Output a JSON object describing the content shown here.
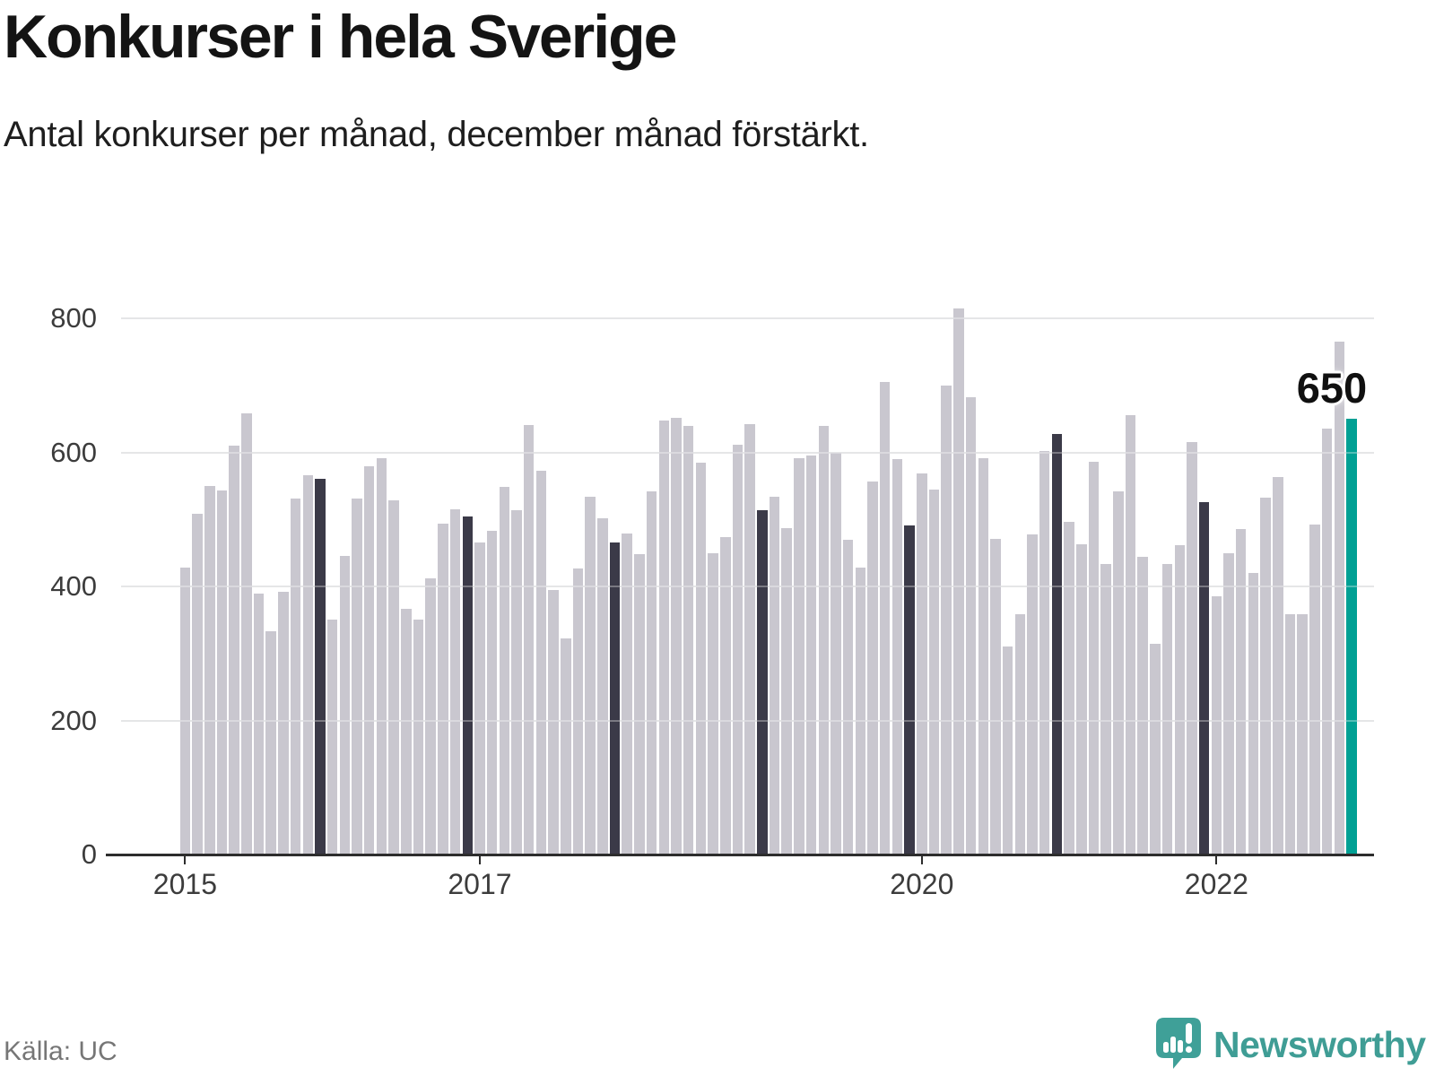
{
  "header": {
    "title": "Konkurser i hela Sverige",
    "subtitle": "Antal konkurser per månad, december månad förstärkt."
  },
  "footer": {
    "source": "Källa: UC",
    "brand": "Newsworthy"
  },
  "colors": {
    "bar_default": "#c9c7cf",
    "bar_december": "#3b3a48",
    "bar_highlight": "#00a094",
    "gridline": "#d9dadc",
    "axis": "#2d2d2d",
    "axis_text": "#3c3c3c",
    "title_text": "#141414",
    "source_text": "#767676",
    "brand_teal": "#3f9d95"
  },
  "chart_data": {
    "type": "bar",
    "title": "Konkurser i hela Sverige",
    "subtitle": "Antal konkurser per månad, december månad förstärkt.",
    "ylabel": "",
    "xlabel": "",
    "ylim": [
      0,
      850
    ],
    "yticks": [
      0,
      200,
      400,
      600,
      800
    ],
    "grid": true,
    "december_emphasized": true,
    "highlight_last_bar": true,
    "xticks": [
      {
        "label": "2015",
        "month_index": 0
      },
      {
        "label": "2017",
        "month_index": 24
      },
      {
        "label": "2020",
        "month_index": 60
      },
      {
        "label": "2022",
        "month_index": 84
      }
    ],
    "annotation": {
      "month_index": 95,
      "label": "650"
    },
    "months": [
      "2015-01",
      "2015-02",
      "2015-03",
      "2015-04",
      "2015-05",
      "2015-06",
      "2015-07",
      "2015-08",
      "2015-09",
      "2015-10",
      "2015-11",
      "2015-12",
      "2016-01",
      "2016-02",
      "2016-03",
      "2016-04",
      "2016-05",
      "2016-06",
      "2016-07",
      "2016-08",
      "2016-09",
      "2016-10",
      "2016-11",
      "2016-12",
      "2017-01",
      "2017-02",
      "2017-03",
      "2017-04",
      "2017-05",
      "2017-06",
      "2017-07",
      "2017-08",
      "2017-09",
      "2017-10",
      "2017-11",
      "2017-12",
      "2018-01",
      "2018-02",
      "2018-03",
      "2018-04",
      "2018-05",
      "2018-06",
      "2018-07",
      "2018-08",
      "2018-09",
      "2018-10",
      "2018-11",
      "2018-12",
      "2019-01",
      "2019-02",
      "2019-03",
      "2019-04",
      "2019-05",
      "2019-06",
      "2019-07",
      "2019-08",
      "2019-09",
      "2019-10",
      "2019-11",
      "2019-12",
      "2020-01",
      "2020-02",
      "2020-03",
      "2020-04",
      "2020-05",
      "2020-06",
      "2020-07",
      "2020-08",
      "2020-09",
      "2020-10",
      "2020-11",
      "2020-12",
      "2021-01",
      "2021-02",
      "2021-03",
      "2021-04",
      "2021-05",
      "2021-06",
      "2021-07",
      "2021-08",
      "2021-09",
      "2021-10",
      "2021-11",
      "2021-12",
      "2022-01",
      "2022-02",
      "2022-03",
      "2022-04",
      "2022-05",
      "2022-06",
      "2022-07",
      "2022-08",
      "2022-09",
      "2022-10",
      "2022-11",
      "2022-12"
    ],
    "values": [
      428,
      509,
      550,
      543,
      610,
      658,
      389,
      333,
      392,
      531,
      566,
      560,
      350,
      446,
      531,
      580,
      591,
      528,
      366,
      351,
      412,
      494,
      515,
      505,
      466,
      483,
      548,
      514,
      641,
      572,
      395,
      323,
      427,
      534,
      502,
      465,
      479,
      448,
      542,
      648,
      652,
      639,
      585,
      449,
      473,
      611,
      642,
      514,
      534,
      487,
      591,
      596,
      639,
      600,
      470,
      428,
      556,
      705,
      590,
      491,
      569,
      544,
      700,
      815,
      682,
      592,
      471,
      310,
      359,
      477,
      602,
      627,
      496,
      463,
      586,
      434,
      542,
      655,
      444,
      315,
      434,
      461,
      615,
      526,
      385,
      450,
      486,
      420,
      533,
      563,
      358,
      359,
      492,
      635,
      765,
      650
    ]
  }
}
